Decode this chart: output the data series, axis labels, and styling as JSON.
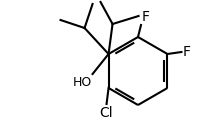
{
  "line_color": "#000000",
  "bg_color": "#ffffff",
  "line_width": 1.5,
  "font_size": 10,
  "label_F1": "F",
  "label_F2": "F",
  "label_HO": "HO",
  "label_Cl": "Cl"
}
